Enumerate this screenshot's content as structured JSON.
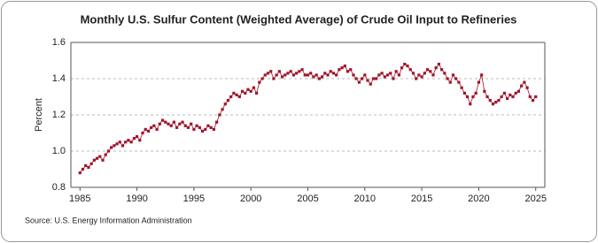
{
  "chart_data": {
    "type": "line",
    "title": "Monthly U.S. Sulfur Content (Weighted Average) of Crude Oil Input to Refineries",
    "y_label": "Percent",
    "source": "Source: U.S. Energy Information Administration",
    "xlim": [
      1984.2,
      2025.8
    ],
    "xticks": [
      1985,
      1990,
      1995,
      2000,
      2005,
      2010,
      2015,
      2020,
      2025
    ],
    "ylim": [
      0.8,
      1.6
    ],
    "yticks": [
      0.8,
      {
        "value": 1,
        "label": "1.0"
      },
      1.2,
      1.4,
      1.6
    ],
    "grid": true,
    "x": [
      1985,
      1985.25,
      1985.5,
      1985.75,
      1986,
      1986.25,
      1986.5,
      1986.75,
      1987,
      1987.25,
      1987.5,
      1987.75,
      1988,
      1988.25,
      1988.5,
      1988.75,
      1989,
      1989.25,
      1989.5,
      1989.75,
      1990,
      1990.25,
      1990.5,
      1990.75,
      1991,
      1991.25,
      1991.5,
      1991.75,
      1992,
      1992.25,
      1992.5,
      1992.75,
      1993,
      1993.25,
      1993.5,
      1993.75,
      1994,
      1994.25,
      1994.5,
      1994.75,
      1995,
      1995.25,
      1995.5,
      1995.75,
      1996,
      1996.25,
      1996.5,
      1996.75,
      1997,
      1997.25,
      1997.5,
      1997.75,
      1998,
      1998.25,
      1998.5,
      1998.75,
      1999,
      1999.25,
      1999.5,
      1999.75,
      2000,
      2000.25,
      2000.5,
      2000.75,
      2001,
      2001.25,
      2001.5,
      2001.75,
      2002,
      2002.25,
      2002.5,
      2002.75,
      2003,
      2003.25,
      2003.5,
      2003.75,
      2004,
      2004.25,
      2004.5,
      2004.75,
      2005,
      2005.25,
      2005.5,
      2005.75,
      2006,
      2006.25,
      2006.5,
      2006.75,
      2007,
      2007.25,
      2007.5,
      2007.75,
      2008,
      2008.25,
      2008.5,
      2008.75,
      2009,
      2009.25,
      2009.5,
      2009.75,
      2010,
      2010.25,
      2010.5,
      2010.75,
      2011,
      2011.25,
      2011.5,
      2011.75,
      2012,
      2012.25,
      2012.5,
      2012.75,
      2013,
      2013.25,
      2013.5,
      2013.75,
      2014,
      2014.25,
      2014.5,
      2014.75,
      2015,
      2015.25,
      2015.5,
      2015.75,
      2016,
      2016.25,
      2016.5,
      2016.75,
      2017,
      2017.25,
      2017.5,
      2017.75,
      2018,
      2018.25,
      2018.5,
      2018.75,
      2019,
      2019.25,
      2019.5,
      2019.75,
      2020,
      2020.25,
      2020.5,
      2020.75,
      2021,
      2021.25,
      2021.5,
      2021.75,
      2022,
      2022.25,
      2022.5,
      2022.75,
      2023,
      2023.25,
      2023.5,
      2023.75,
      2024,
      2024.25,
      2024.5,
      2024.75,
      2025
    ],
    "series": [
      {
        "color": "#a0152a",
        "values": [
          0.88,
          0.9,
          0.92,
          0.91,
          0.93,
          0.95,
          0.96,
          0.97,
          0.95,
          0.98,
          1.0,
          1.02,
          1.03,
          1.04,
          1.05,
          1.03,
          1.05,
          1.06,
          1.05,
          1.07,
          1.08,
          1.06,
          1.1,
          1.12,
          1.11,
          1.13,
          1.14,
          1.12,
          1.15,
          1.17,
          1.16,
          1.15,
          1.14,
          1.16,
          1.13,
          1.15,
          1.16,
          1.14,
          1.13,
          1.15,
          1.12,
          1.14,
          1.13,
          1.11,
          1.12,
          1.14,
          1.13,
          1.12,
          1.16,
          1.2,
          1.23,
          1.26,
          1.28,
          1.3,
          1.32,
          1.31,
          1.3,
          1.33,
          1.32,
          1.34,
          1.33,
          1.35,
          1.32,
          1.38,
          1.4,
          1.42,
          1.43,
          1.44,
          1.4,
          1.42,
          1.44,
          1.41,
          1.42,
          1.43,
          1.44,
          1.42,
          1.43,
          1.44,
          1.45,
          1.42,
          1.42,
          1.43,
          1.41,
          1.42,
          1.4,
          1.41,
          1.43,
          1.42,
          1.44,
          1.43,
          1.42,
          1.45,
          1.46,
          1.47,
          1.44,
          1.45,
          1.42,
          1.4,
          1.38,
          1.4,
          1.42,
          1.39,
          1.37,
          1.4,
          1.4,
          1.42,
          1.43,
          1.41,
          1.42,
          1.43,
          1.4,
          1.44,
          1.42,
          1.46,
          1.48,
          1.47,
          1.45,
          1.43,
          1.4,
          1.42,
          1.41,
          1.43,
          1.45,
          1.44,
          1.42,
          1.46,
          1.48,
          1.45,
          1.43,
          1.4,
          1.38,
          1.42,
          1.4,
          1.38,
          1.35,
          1.32,
          1.3,
          1.26,
          1.3,
          1.32,
          1.38,
          1.42,
          1.33,
          1.3,
          1.28,
          1.26,
          1.27,
          1.28,
          1.3,
          1.32,
          1.29,
          1.31,
          1.3,
          1.32,
          1.33,
          1.36,
          1.38,
          1.35,
          1.3,
          1.28,
          1.3
        ]
      }
    ]
  }
}
